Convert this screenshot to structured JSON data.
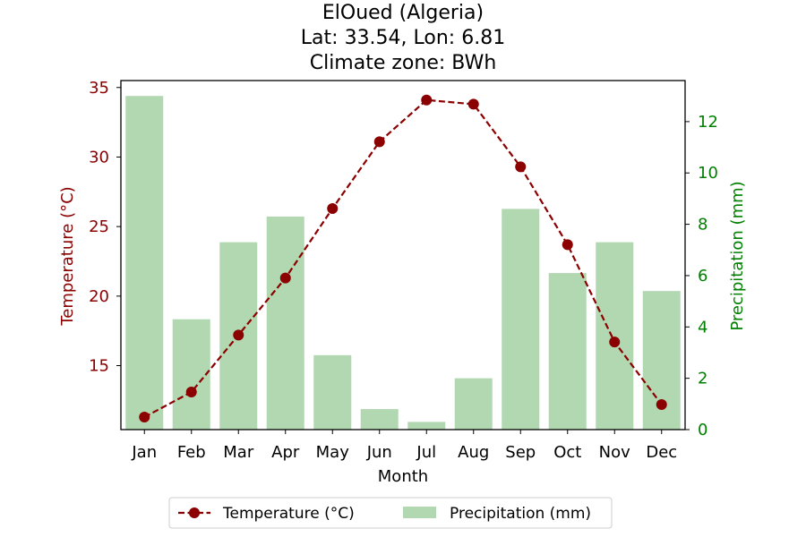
{
  "chart_data": {
    "type": "bar+line",
    "title": [
      "ElOued (Algeria)",
      "Lat: 33.54, Lon: 6.81",
      "Climate zone: BWh"
    ],
    "xlabel": "Month",
    "categories": [
      "Jan",
      "Feb",
      "Mar",
      "Apr",
      "May",
      "Jun",
      "Jul",
      "Aug",
      "Sep",
      "Oct",
      "Nov",
      "Dec"
    ],
    "left_axis": {
      "label": "Temperature (°C)",
      "color": "#8b0000",
      "ticks": [
        15,
        20,
        25,
        30,
        35
      ],
      "ylim": [
        10.4,
        35.5
      ]
    },
    "right_axis": {
      "label": "Precipitation (mm)",
      "color": "#008000",
      "ticks": [
        0,
        2,
        4,
        6,
        8,
        10,
        12
      ],
      "ylim": [
        0,
        13.6
      ]
    },
    "series": [
      {
        "name": "Temperature (°C)",
        "type": "line",
        "axis": "left",
        "color": "#8b0000",
        "line_style": "dashed",
        "marker": "circle",
        "values": [
          11.3,
          13.1,
          17.2,
          21.3,
          26.3,
          31.1,
          34.1,
          33.8,
          29.3,
          23.7,
          16.7,
          12.2
        ]
      },
      {
        "name": "Precipitation (mm)",
        "type": "bar",
        "axis": "right",
        "color": "#b2d8b2",
        "values": [
          13.0,
          4.3,
          7.3,
          8.3,
          2.9,
          0.8,
          0.3,
          2.0,
          8.6,
          6.1,
          7.3,
          5.4
        ]
      }
    ],
    "grid": false,
    "legend_position": "bottom-center"
  }
}
